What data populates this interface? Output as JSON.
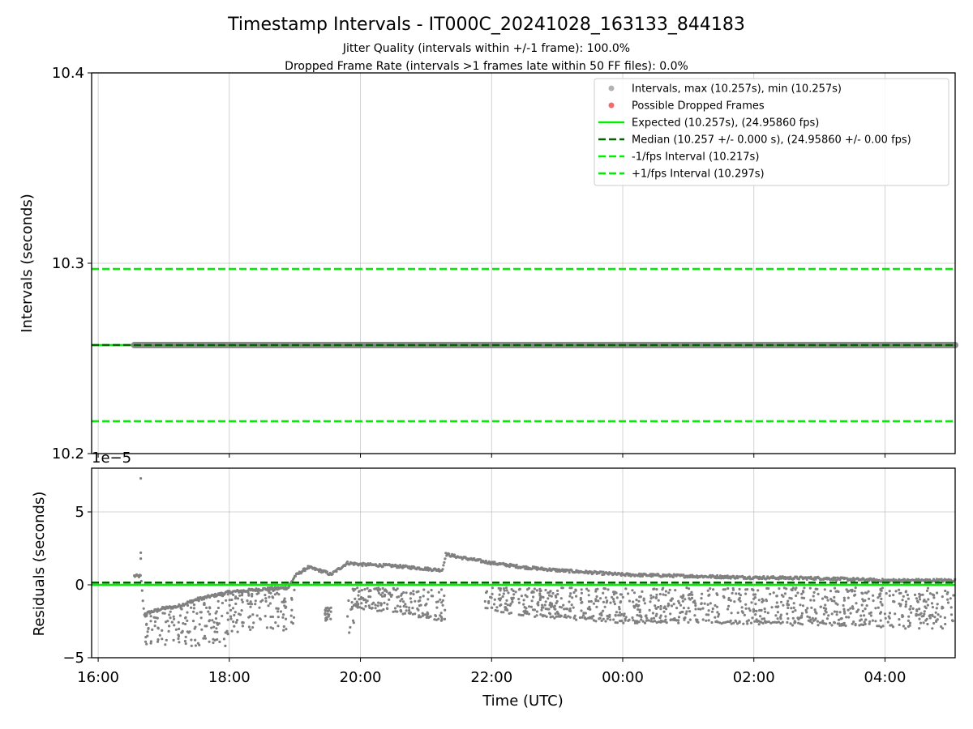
{
  "chart_data": [
    {
      "type": "scatter",
      "title": "Timestamp Intervals - IT000C_20241028_163133_844183",
      "subtitle_1": "Jitter Quality (intervals within +/-1 frame): 100.0%",
      "subtitle_2": "Dropped Frame Rate (intervals >1 frames late within 50 FF files): 0.0%",
      "xlabel": "",
      "ylabel": "Intervals (seconds)",
      "ylim": [
        10.2,
        10.4
      ],
      "y_ticks": [
        "10.2",
        "10.3",
        "10.4"
      ],
      "x_range_hours": [
        15.9,
        29.07
      ],
      "grid": true,
      "legend_position": "top-right",
      "colors": {
        "intervals": "#808080",
        "dropped": "#f26b6b",
        "expected": "#00ee00",
        "median": "#006400",
        "bounds": "#00ee00"
      },
      "legend": [
        {
          "label": "Intervals, max (10.257s), min (10.257s)",
          "kind": "dot-gray"
        },
        {
          "label": "Possible Dropped Frames",
          "kind": "dot-red"
        },
        {
          "label": "Expected (10.257s), (24.95860 fps)",
          "kind": "line-solid-green"
        },
        {
          "label": "Median (10.257 +/- 0.000 s), (24.95860 +/- 0.00 fps)",
          "kind": "line-dash-darkgreen"
        },
        {
          "label": "-1/fps Interval (10.217s)",
          "kind": "line-dash-green"
        },
        {
          "label": "+1/fps Interval (10.297s)",
          "kind": "line-dash-green"
        }
      ],
      "series": [
        {
          "name": "Intervals, max (10.257s), min (10.257s)",
          "x_start": "16:33",
          "x_end": "05:04",
          "value": 10.257
        },
        {
          "name": "Expected (10.257s), (24.95860 fps)",
          "value": 10.257
        },
        {
          "name": "Median (10.257 +/- 0.000 s), (24.95860 +/- 0.00 fps)",
          "value": 10.257
        },
        {
          "name": "-1/fps Interval (10.217s)",
          "value": 10.217
        },
        {
          "name": "+1/fps Interval (10.297s)",
          "value": 10.297
        }
      ]
    },
    {
      "type": "scatter",
      "xlabel": "Time (UTC)",
      "ylabel": "Residuals (seconds)",
      "y_scale_label": "1e−5",
      "ylim": [
        -5,
        8
      ],
      "y_ticks": [
        "−5",
        "0",
        "5"
      ],
      "x_ticks": [
        "16:00",
        "18:00",
        "20:00",
        "22:00",
        "00:00",
        "02:00",
        "04:00"
      ],
      "x_range_hours": [
        15.9,
        29.07
      ],
      "grid": true,
      "expected_residual": 0.0,
      "median_residual": 0.15,
      "outliers": [
        {
          "x_hours": 16.65,
          "y": 7.3
        },
        {
          "x_hours": 16.65,
          "y": 2.2
        },
        {
          "x_hours": 16.65,
          "y": 1.8
        }
      ],
      "upper_band_points": [
        [
          16.55,
          0.6
        ],
        [
          16.65,
          0.6
        ],
        [
          16.7,
          -2.0
        ],
        [
          16.85,
          -1.8
        ],
        [
          17.0,
          -1.6
        ],
        [
          17.2,
          -1.5
        ],
        [
          17.5,
          -1.0
        ],
        [
          18.0,
          -0.5
        ],
        [
          18.5,
          -0.3
        ],
        [
          18.9,
          -0.2
        ],
        [
          19.0,
          0.6
        ],
        [
          19.2,
          1.2
        ],
        [
          19.45,
          0.9
        ],
        [
          19.55,
          0.7
        ],
        [
          19.8,
          1.5
        ],
        [
          20.0,
          1.4
        ],
        [
          20.5,
          1.3
        ],
        [
          21.0,
          1.1
        ],
        [
          21.25,
          1.0
        ],
        [
          21.3,
          2.1
        ],
        [
          21.5,
          1.9
        ],
        [
          22.0,
          1.5
        ],
        [
          22.5,
          1.2
        ],
        [
          23.0,
          1.0
        ],
        [
          24.0,
          0.7
        ],
        [
          25.0,
          0.6
        ],
        [
          26.0,
          0.5
        ],
        [
          27.0,
          0.45
        ],
        [
          28.0,
          0.3
        ],
        [
          29.07,
          0.3
        ]
      ],
      "lower_band_points": [
        [
          19.9,
          -1.5
        ],
        [
          20.5,
          -1.8
        ],
        [
          21.0,
          -2.2
        ],
        [
          21.25,
          -2.5
        ],
        [
          21.9,
          -1.6
        ],
        [
          22.5,
          -2.0
        ],
        [
          23.0,
          -2.2
        ],
        [
          24.0,
          -2.5
        ],
        [
          25.0,
          -2.5
        ],
        [
          26.0,
          -2.6
        ],
        [
          27.0,
          -2.7
        ],
        [
          27.9,
          -2.8
        ],
        [
          28.0,
          -2.9
        ]
      ],
      "scatter_region": {
        "x_range": [
          16.7,
          29.07
        ],
        "y_range": [
          -4.5,
          0.5
        ]
      }
    }
  ]
}
